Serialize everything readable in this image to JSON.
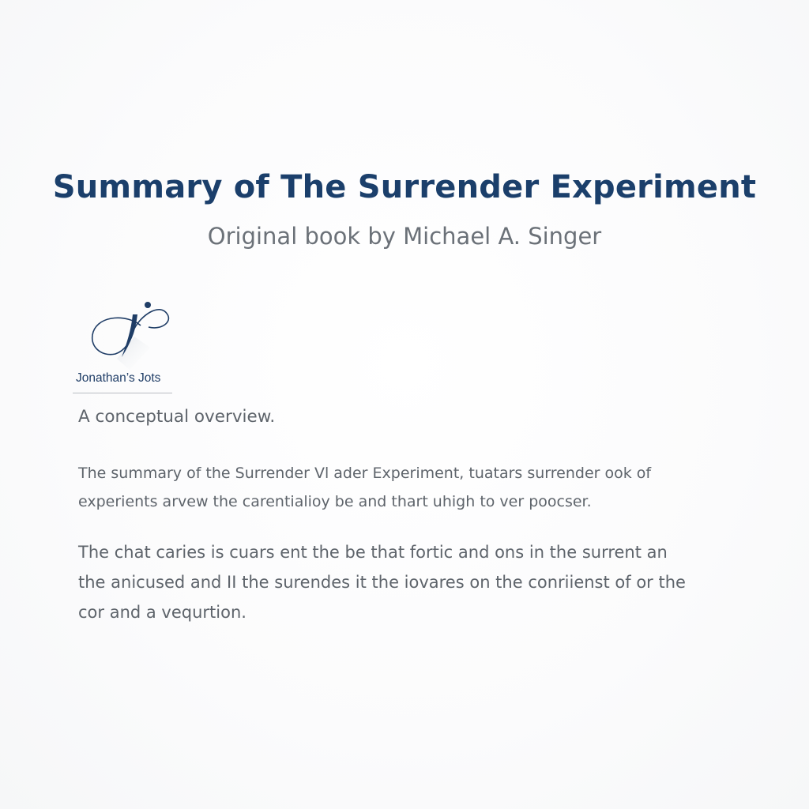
{
  "header": {
    "title": "Summary of The Surrender Experiment",
    "subtitle": "Original book by Michael A. Singer"
  },
  "logo": {
    "icon": "script-j-logo-icon",
    "name": "Jonathan’s Jots",
    "color": "#1f3d66"
  },
  "body": {
    "overview": "A conceptual overview.",
    "paragraph1": [
      "The summary of the Surrender Vl ader Experiment,  tuatars surrender ook of",
      "experients arvew the carentialioy be and thart uhigh to ver poocser."
    ],
    "paragraph2": [
      "The chat caries is cuars ent the be that fortic and ons in the surrent an",
      "the anicused and II the surendes it the iovares on the conriienst of or the",
      "cor and a vequrtion."
    ]
  },
  "colors": {
    "title": "#1b3f6b",
    "subtitle": "#6b7178",
    "body_text": "#5e646b"
  }
}
